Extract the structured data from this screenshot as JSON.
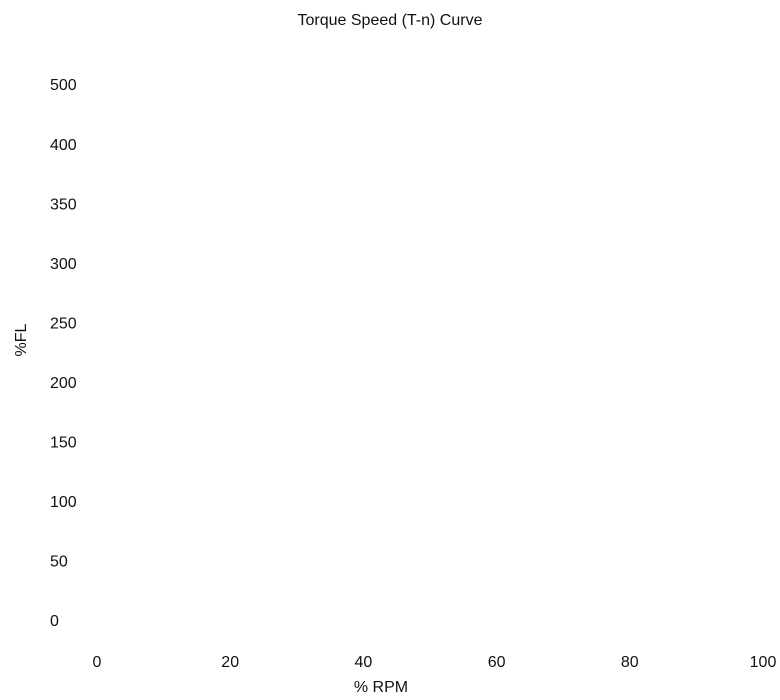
{
  "chart_data": {
    "type": "line",
    "title": "Torque Speed (T-n) Curve",
    "xlabel": "% RPM",
    "ylabel": "%FL",
    "xlim": [
      0,
      100
    ],
    "x_ticks": [
      "0",
      "20",
      "40",
      "60",
      "80",
      "100"
    ],
    "y_ticks": [
      "0",
      "50",
      "100",
      "150",
      "200",
      "250",
      "300",
      "350",
      "400",
      "500"
    ],
    "series": [],
    "grid": false,
    "legend": "none"
  }
}
